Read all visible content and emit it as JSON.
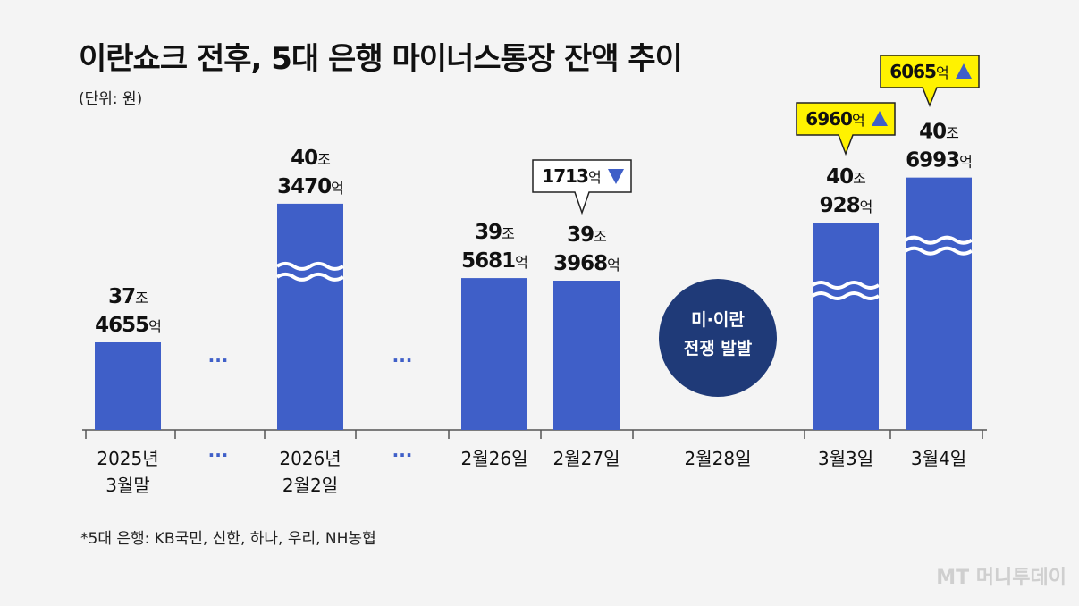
{
  "title": "이란쇼크 전후, 5대 은행 마이너스통장 잔액 추이",
  "unit": "(단위: 원)",
  "footnote": "*5대 은행: KB국민, 신한, 하나, 우리, NH농협",
  "logo": "MT 머니투데이",
  "ellipsis": "···",
  "colors": {
    "bar": "#3f5fc8",
    "event": "#1f3a78",
    "callout": "#fff200",
    "up": "#3f5fc8",
    "down": "#3f5fc8"
  },
  "chart_data": {
    "type": "bar",
    "categories": [
      "2025년 3월말",
      "2026년 2월2일",
      "2월26일",
      "2월27일",
      "2월28일",
      "3월3일",
      "3월4일"
    ],
    "values": [
      374655,
      403470,
      395681,
      393968,
      null,
      400928,
      406993
    ],
    "value_unit": "억 원",
    "broken_axis": true,
    "bars": [
      {
        "category": [
          "2025년",
          "3월말"
        ],
        "value_label": [
          "37조",
          "4655억"
        ],
        "wavy": false,
        "height_rank": 1
      },
      {
        "category": [
          "2026년",
          "2월2일"
        ],
        "value_label": [
          "40조",
          "3470억"
        ],
        "wavy": true,
        "height_rank": 6
      },
      {
        "category": [
          "2월26일"
        ],
        "value_label": [
          "39조",
          "5681억"
        ],
        "wavy": false,
        "height_rank": 3
      },
      {
        "category": [
          "2월27일"
        ],
        "value_label": [
          "39조",
          "3968억"
        ],
        "wavy": false,
        "height_rank": 3
      },
      {
        "category": [
          "2월28일"
        ],
        "value_label": null,
        "wavy": false,
        "event": [
          "미·이란",
          "전쟁 발발"
        ]
      },
      {
        "category": [
          "3월3일"
        ],
        "value_label": [
          "40조",
          "928억"
        ],
        "wavy": true,
        "height_rank": 5
      },
      {
        "category": [
          "3월4일"
        ],
        "value_label": [
          "40조",
          "6993억"
        ],
        "wavy": true,
        "height_rank": 7
      }
    ],
    "changes": [
      {
        "category": "2월27일",
        "text": "1713억",
        "direction": "down",
        "style": "white"
      },
      {
        "category": "3월3일",
        "text": "6960억",
        "direction": "up",
        "style": "yellow"
      },
      {
        "category": "3월4일",
        "text": "6065억",
        "direction": "up",
        "style": "yellow"
      }
    ]
  }
}
